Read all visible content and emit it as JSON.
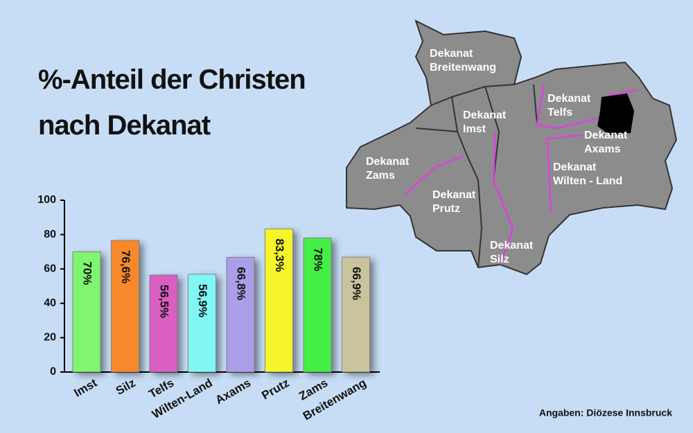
{
  "chart_data": {
    "type": "bar",
    "title": "%-Anteil der Christen nach Dekanat",
    "categories": [
      "Imst",
      "Silz",
      "Telfs",
      "Wilten-Land",
      "Axams",
      "Prutz",
      "Zams",
      "Breitenwang"
    ],
    "values": [
      70,
      76.6,
      56.5,
      56.9,
      66.8,
      83.3,
      78,
      66.9
    ],
    "value_labels": [
      "70%",
      "76,6%",
      "56,5%",
      "56,9%",
      "66,8%",
      "83,3%",
      "78%",
      "66,9%"
    ],
    "colors": [
      "#80f56f",
      "#f7892b",
      "#d95fc1",
      "#80f7f4",
      "#aa9ee9",
      "#f6f52b",
      "#45ee45",
      "#c9c49b"
    ],
    "ylim": [
      0,
      100
    ],
    "yticks": [
      0,
      20,
      40,
      60,
      80,
      100
    ],
    "source": "Angaben: Diözese Innsbruck"
  },
  "map": {
    "labels": [
      [
        "Dekanat",
        "Breitenwang"
      ],
      [
        "Dekanat",
        "Imst"
      ],
      [
        "Dekanat",
        "Telfs"
      ],
      [
        "Dekanat",
        "Axams"
      ],
      [
        "Dekanat",
        "Wilten - Land"
      ],
      [
        "Dekanat",
        "Zams"
      ],
      [
        "Dekanat",
        "Prutz"
      ],
      [
        "Dekanat",
        "Silz"
      ]
    ]
  }
}
